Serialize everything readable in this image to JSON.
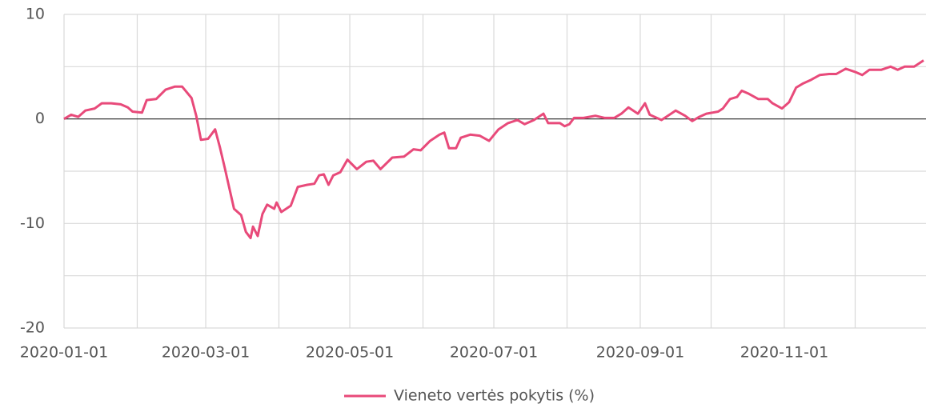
{
  "chart_data": {
    "type": "line",
    "x": [
      "2020-01-01",
      "2020-01-04",
      "2020-01-07",
      "2020-01-10",
      "2020-01-14",
      "2020-01-17",
      "2020-01-21",
      "2020-01-25",
      "2020-01-28",
      "2020-01-30",
      "2020-02-03",
      "2020-02-05",
      "2020-02-09",
      "2020-02-13",
      "2020-02-17",
      "2020-02-20",
      "2020-02-24",
      "2020-02-26",
      "2020-02-28",
      "2020-03-02",
      "2020-03-05",
      "2020-03-07",
      "2020-03-09",
      "2020-03-13",
      "2020-03-16",
      "2020-03-18",
      "2020-03-20",
      "2020-03-21",
      "2020-03-23",
      "2020-03-25",
      "2020-03-27",
      "2020-03-30",
      "2020-03-31",
      "2020-04-02",
      "2020-04-06",
      "2020-04-08",
      "2020-04-09",
      "2020-04-13",
      "2020-04-16",
      "2020-04-18",
      "2020-04-20",
      "2020-04-22",
      "2020-04-24",
      "2020-04-27",
      "2020-04-30",
      "2020-05-04",
      "2020-05-08",
      "2020-05-11",
      "2020-05-14",
      "2020-05-19",
      "2020-05-24",
      "2020-05-28",
      "2020-05-31",
      "2020-06-04",
      "2020-06-08",
      "2020-06-10",
      "2020-06-12",
      "2020-06-15",
      "2020-06-17",
      "2020-06-21",
      "2020-06-25",
      "2020-06-29",
      "2020-07-03",
      "2020-07-07",
      "2020-07-11",
      "2020-07-14",
      "2020-07-18",
      "2020-07-22",
      "2020-07-24",
      "2020-07-29",
      "2020-07-31",
      "2020-08-02",
      "2020-08-04",
      "2020-08-08",
      "2020-08-13",
      "2020-08-17",
      "2020-08-21",
      "2020-08-24",
      "2020-08-27",
      "2020-08-31",
      "2020-09-03",
      "2020-09-05",
      "2020-09-10",
      "2020-09-12",
      "2020-09-16",
      "2020-09-20",
      "2020-09-23",
      "2020-09-26",
      "2020-09-29",
      "2020-10-04",
      "2020-10-06",
      "2020-10-09",
      "2020-10-12",
      "2020-10-14",
      "2020-10-17",
      "2020-10-21",
      "2020-10-25",
      "2020-10-27",
      "2020-10-31",
      "2020-11-03",
      "2020-11-06",
      "2020-11-09",
      "2020-11-12",
      "2020-11-16",
      "2020-11-20",
      "2020-11-23",
      "2020-11-27",
      "2020-12-01",
      "2020-12-04",
      "2020-12-07",
      "2020-12-12",
      "2020-12-16",
      "2020-12-19",
      "2020-12-22",
      "2020-12-26",
      "2020-12-30"
    ],
    "series": [
      {
        "name": "Vieneto vertės pokytis (%)",
        "color": "#e84a7a",
        "values": [
          0,
          0.4,
          0.2,
          0.8,
          1.0,
          1.5,
          1.5,
          1.4,
          1.1,
          0.7,
          0.6,
          1.8,
          1.9,
          2.8,
          3.1,
          3.1,
          2.0,
          0.3,
          -2.0,
          -1.9,
          -1.0,
          -2.7,
          -4.6,
          -8.6,
          -9.2,
          -10.8,
          -11.4,
          -10.3,
          -11.2,
          -9.1,
          -8.2,
          -8.6,
          -8.0,
          -8.9,
          -8.3,
          -7.1,
          -6.5,
          -6.3,
          -6.2,
          -5.4,
          -5.3,
          -6.3,
          -5.4,
          -5.1,
          -3.9,
          -4.8,
          -4.1,
          -4.0,
          -4.8,
          -3.7,
          -3.6,
          -2.9,
          -3.0,
          -2.1,
          -1.5,
          -1.3,
          -2.8,
          -2.8,
          -1.8,
          -1.5,
          -1.6,
          -2.1,
          -1.0,
          -0.4,
          -0.1,
          -0.5,
          -0.1,
          0.5,
          -0.4,
          -0.4,
          -0.7,
          -0.5,
          0.1,
          0.1,
          0.3,
          0.1,
          0.1,
          0.5,
          1.1,
          0.5,
          1.5,
          0.4,
          -0.1,
          0.2,
          0.8,
          0.3,
          -0.2,
          0.2,
          0.5,
          0.7,
          1.0,
          1.9,
          2.1,
          2.7,
          2.4,
          1.9,
          1.9,
          1.5,
          1.0,
          1.6,
          3.0,
          3.4,
          3.7,
          4.2,
          4.3,
          4.3,
          4.8,
          4.5,
          4.2,
          4.7,
          4.7,
          5.0,
          4.7,
          5.0,
          5.0,
          5.6
        ]
      }
    ],
    "xlim": [
      "2020-01-01",
      "2020-12-31"
    ],
    "xticks": [
      "2020-01-01",
      "2020-03-01",
      "2020-05-01",
      "2020-07-01",
      "2020-09-01",
      "2020-11-01"
    ],
    "xminor": [
      "2020-02-01",
      "2020-04-01",
      "2020-06-01",
      "2020-08-01",
      "2020-10-01",
      "2020-12-01"
    ],
    "ylim": [
      -20,
      10
    ],
    "yticks": [
      -20,
      -10,
      0,
      10
    ],
    "yminor": [
      -15,
      -5,
      5
    ],
    "grid": true,
    "zero_line": true,
    "legend": "bottom"
  }
}
